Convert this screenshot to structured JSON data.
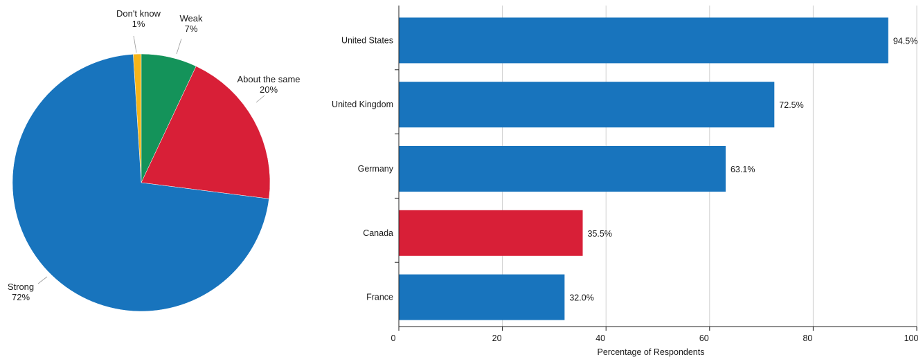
{
  "chart_data": [
    {
      "type": "pie",
      "title": "",
      "slices": [
        {
          "label": "Don't know",
          "value": 1,
          "value_label": "1%",
          "color": "#f6b519"
        },
        {
          "label": "Weak",
          "value": 7,
          "value_label": "7%",
          "color": "#14935a"
        },
        {
          "label": "About the same",
          "value": 20,
          "value_label": "20%",
          "color": "#d81f37"
        },
        {
          "label": "Strong",
          "value": 72,
          "value_label": "72%",
          "color": "#1874bd"
        }
      ]
    },
    {
      "type": "bar",
      "orientation": "horizontal",
      "title": "",
      "xlabel": "Percentage of Respondents",
      "ylabel": "",
      "xlim": [
        0,
        100
      ],
      "x_ticks": [
        0,
        20,
        40,
        60,
        80,
        100
      ],
      "grid": true,
      "categories": [
        "United States",
        "United Kingdom",
        "Germany",
        "Canada",
        "France"
      ],
      "values": [
        94.5,
        72.5,
        63.1,
        35.5,
        32.0
      ],
      "value_labels": [
        "94.5%",
        "72.5%",
        "63.1%",
        "35.5%",
        "32.0%"
      ],
      "colors": [
        "#1874bd",
        "#1874bd",
        "#1874bd",
        "#d81f37",
        "#1874bd"
      ]
    }
  ]
}
